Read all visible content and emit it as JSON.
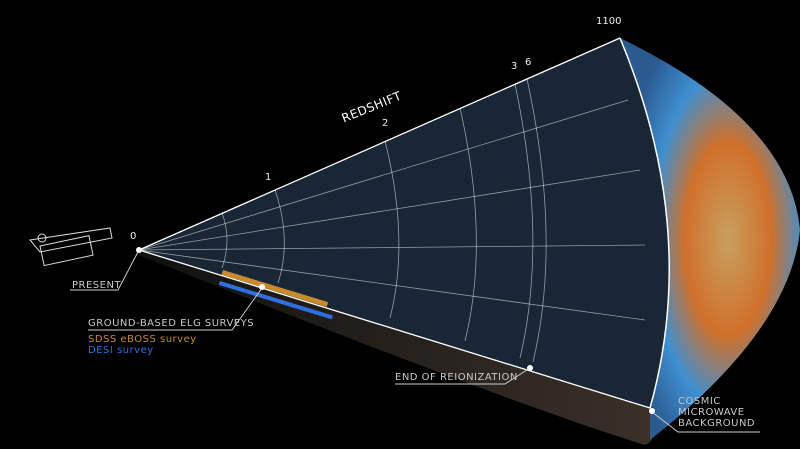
{
  "axis_title": "REDSHIFT",
  "ticks": [
    "0",
    "1",
    "2",
    "3",
    "6",
    "1100"
  ],
  "labels": {
    "present": "PRESENT",
    "surveys": "GROUND-BASED ELG SURVEYS",
    "eboss": "SDSS eBOSS survey",
    "desi": "DESI survey",
    "reionization": "END OF REIONIZATION",
    "cmb": [
      "COSMIC",
      "MICROWAVE",
      "BACKGROUND"
    ]
  },
  "colors": {
    "eboss": "#c88a2e",
    "desi": "#2f6fe0",
    "galaxies": "#c87ad8",
    "cmb_warm": "#d0702a",
    "cmb_cool": "#3f8fd0"
  }
}
